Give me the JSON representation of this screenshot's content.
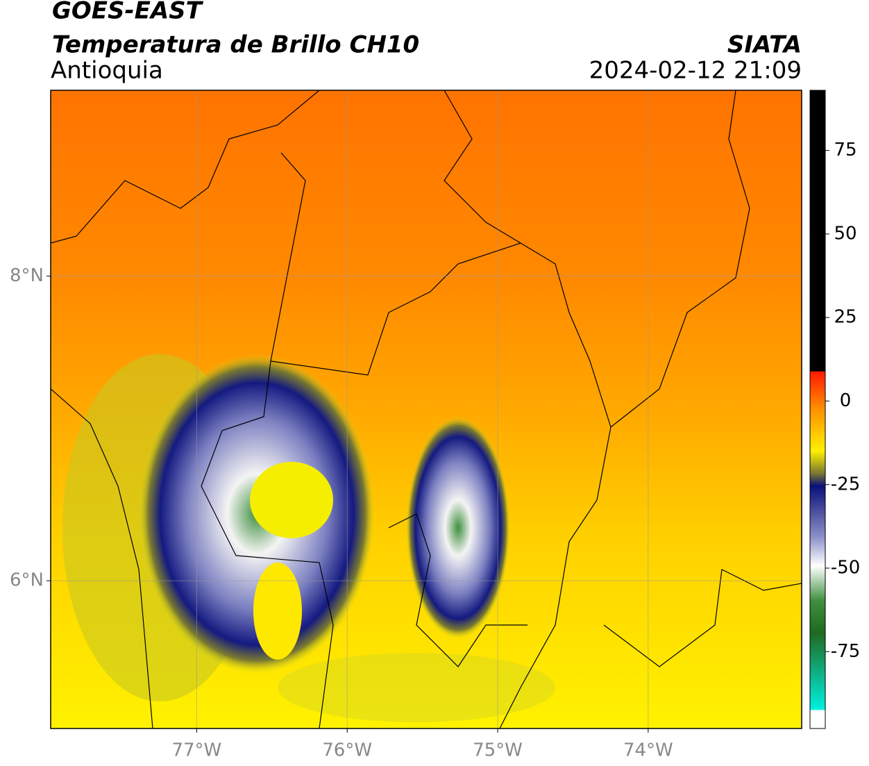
{
  "header": {
    "title": "GOES-EAST",
    "subtitle": "Temperatura de Brillo CH10",
    "region": "Antioquia",
    "source": "SIATA",
    "datetime": "2024-02-12 21:09"
  },
  "map": {
    "xlim": [
      -77.97,
      -72.98
    ],
    "ylim": [
      5.03,
      9.22
    ],
    "xticks": [
      {
        "value": -77,
        "label": "77°W"
      },
      {
        "value": -76,
        "label": "76°W"
      },
      {
        "value": -75,
        "label": "75°W"
      },
      {
        "value": -74,
        "label": "74°W"
      }
    ],
    "yticks": [
      {
        "value": 6,
        "label": "6°N"
      },
      {
        "value": 8,
        "label": "8°N"
      }
    ],
    "grid": true
  },
  "colorbar": {
    "lim": [
      -98,
      93
    ],
    "ticks": [
      75,
      50,
      25,
      0,
      -25,
      -50,
      -75
    ]
  }
}
